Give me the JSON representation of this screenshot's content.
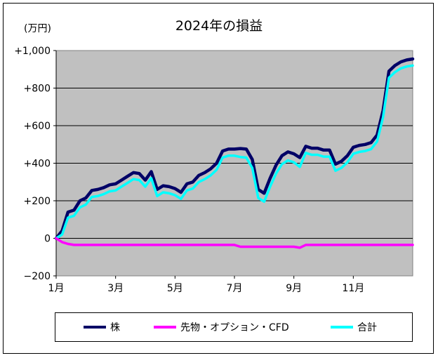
{
  "chart_data": {
    "type": "line",
    "title": "2024年の損益",
    "unit_label": "(万円)",
    "ylim": [
      -200,
      1000
    ],
    "y_ticks": [
      -200,
      0,
      200,
      400,
      600,
      800,
      1000
    ],
    "y_tick_labels": [
      "−200",
      "0",
      "+200",
      "+400",
      "+600",
      "+800",
      "+1,000"
    ],
    "x_ticks": [
      1,
      3,
      5,
      7,
      9,
      11
    ],
    "x_tick_labels": [
      "1月",
      "3月",
      "5月",
      "7月",
      "9月",
      "11月"
    ],
    "xlim": [
      1,
      13
    ],
    "grid": true,
    "legend_position": "bottom",
    "x": [
      1.0,
      1.2,
      1.4,
      1.6,
      1.8,
      2.0,
      2.2,
      2.4,
      2.6,
      2.8,
      3.0,
      3.2,
      3.4,
      3.6,
      3.8,
      4.0,
      4.2,
      4.4,
      4.6,
      4.8,
      5.0,
      5.2,
      5.4,
      5.6,
      5.8,
      6.0,
      6.2,
      6.4,
      6.6,
      6.8,
      7.0,
      7.2,
      7.4,
      7.6,
      7.8,
      8.0,
      8.2,
      8.4,
      8.6,
      8.8,
      9.0,
      9.2,
      9.4,
      9.6,
      9.8,
      10.0,
      10.2,
      10.4,
      10.6,
      10.8,
      11.0,
      11.2,
      11.4,
      11.6,
      11.8,
      12.0,
      12.2,
      12.4,
      12.6,
      12.8,
      13.0
    ],
    "series": [
      {
        "name": "株",
        "color": "#000066",
        "values": [
          0,
          40,
          140,
          150,
          200,
          215,
          255,
          260,
          270,
          285,
          290,
          310,
          330,
          350,
          345,
          310,
          355,
          260,
          280,
          275,
          265,
          245,
          290,
          300,
          335,
          350,
          370,
          400,
          465,
          475,
          475,
          478,
          475,
          420,
          260,
          240,
          320,
          390,
          440,
          460,
          450,
          430,
          490,
          480,
          480,
          470,
          470,
          395,
          410,
          440,
          485,
          495,
          500,
          510,
          550,
          680,
          890,
          920,
          940,
          950,
          955
        ]
      },
      {
        "name": "先物・オプション・CFD",
        "color": "#ff00ff",
        "values": [
          0,
          -20,
          -30,
          -35,
          -35,
          -35,
          -35,
          -35,
          -35,
          -35,
          -35,
          -35,
          -35,
          -35,
          -35,
          -35,
          -35,
          -35,
          -35,
          -35,
          -35,
          -35,
          -35,
          -35,
          -35,
          -35,
          -35,
          -35,
          -35,
          -35,
          -35,
          -45,
          -45,
          -45,
          -45,
          -45,
          -45,
          -45,
          -45,
          -45,
          -45,
          -50,
          -35,
          -35,
          -35,
          -35,
          -35,
          -35,
          -35,
          -35,
          -35,
          -35,
          -35,
          -35,
          -35,
          -35,
          -35,
          -35,
          -35,
          -35,
          -35
        ]
      },
      {
        "name": "合計",
        "color": "#00ffff",
        "values": [
          0,
          20,
          110,
          120,
          165,
          180,
          220,
          225,
          235,
          250,
          255,
          275,
          295,
          315,
          310,
          275,
          320,
          225,
          245,
          240,
          230,
          210,
          255,
          265,
          300,
          315,
          335,
          365,
          430,
          440,
          440,
          433,
          430,
          375,
          215,
          195,
          275,
          345,
          395,
          415,
          405,
          380,
          455,
          445,
          445,
          435,
          435,
          360,
          375,
          405,
          450,
          460,
          465,
          475,
          515,
          645,
          855,
          885,
          905,
          915,
          920
        ]
      }
    ]
  }
}
